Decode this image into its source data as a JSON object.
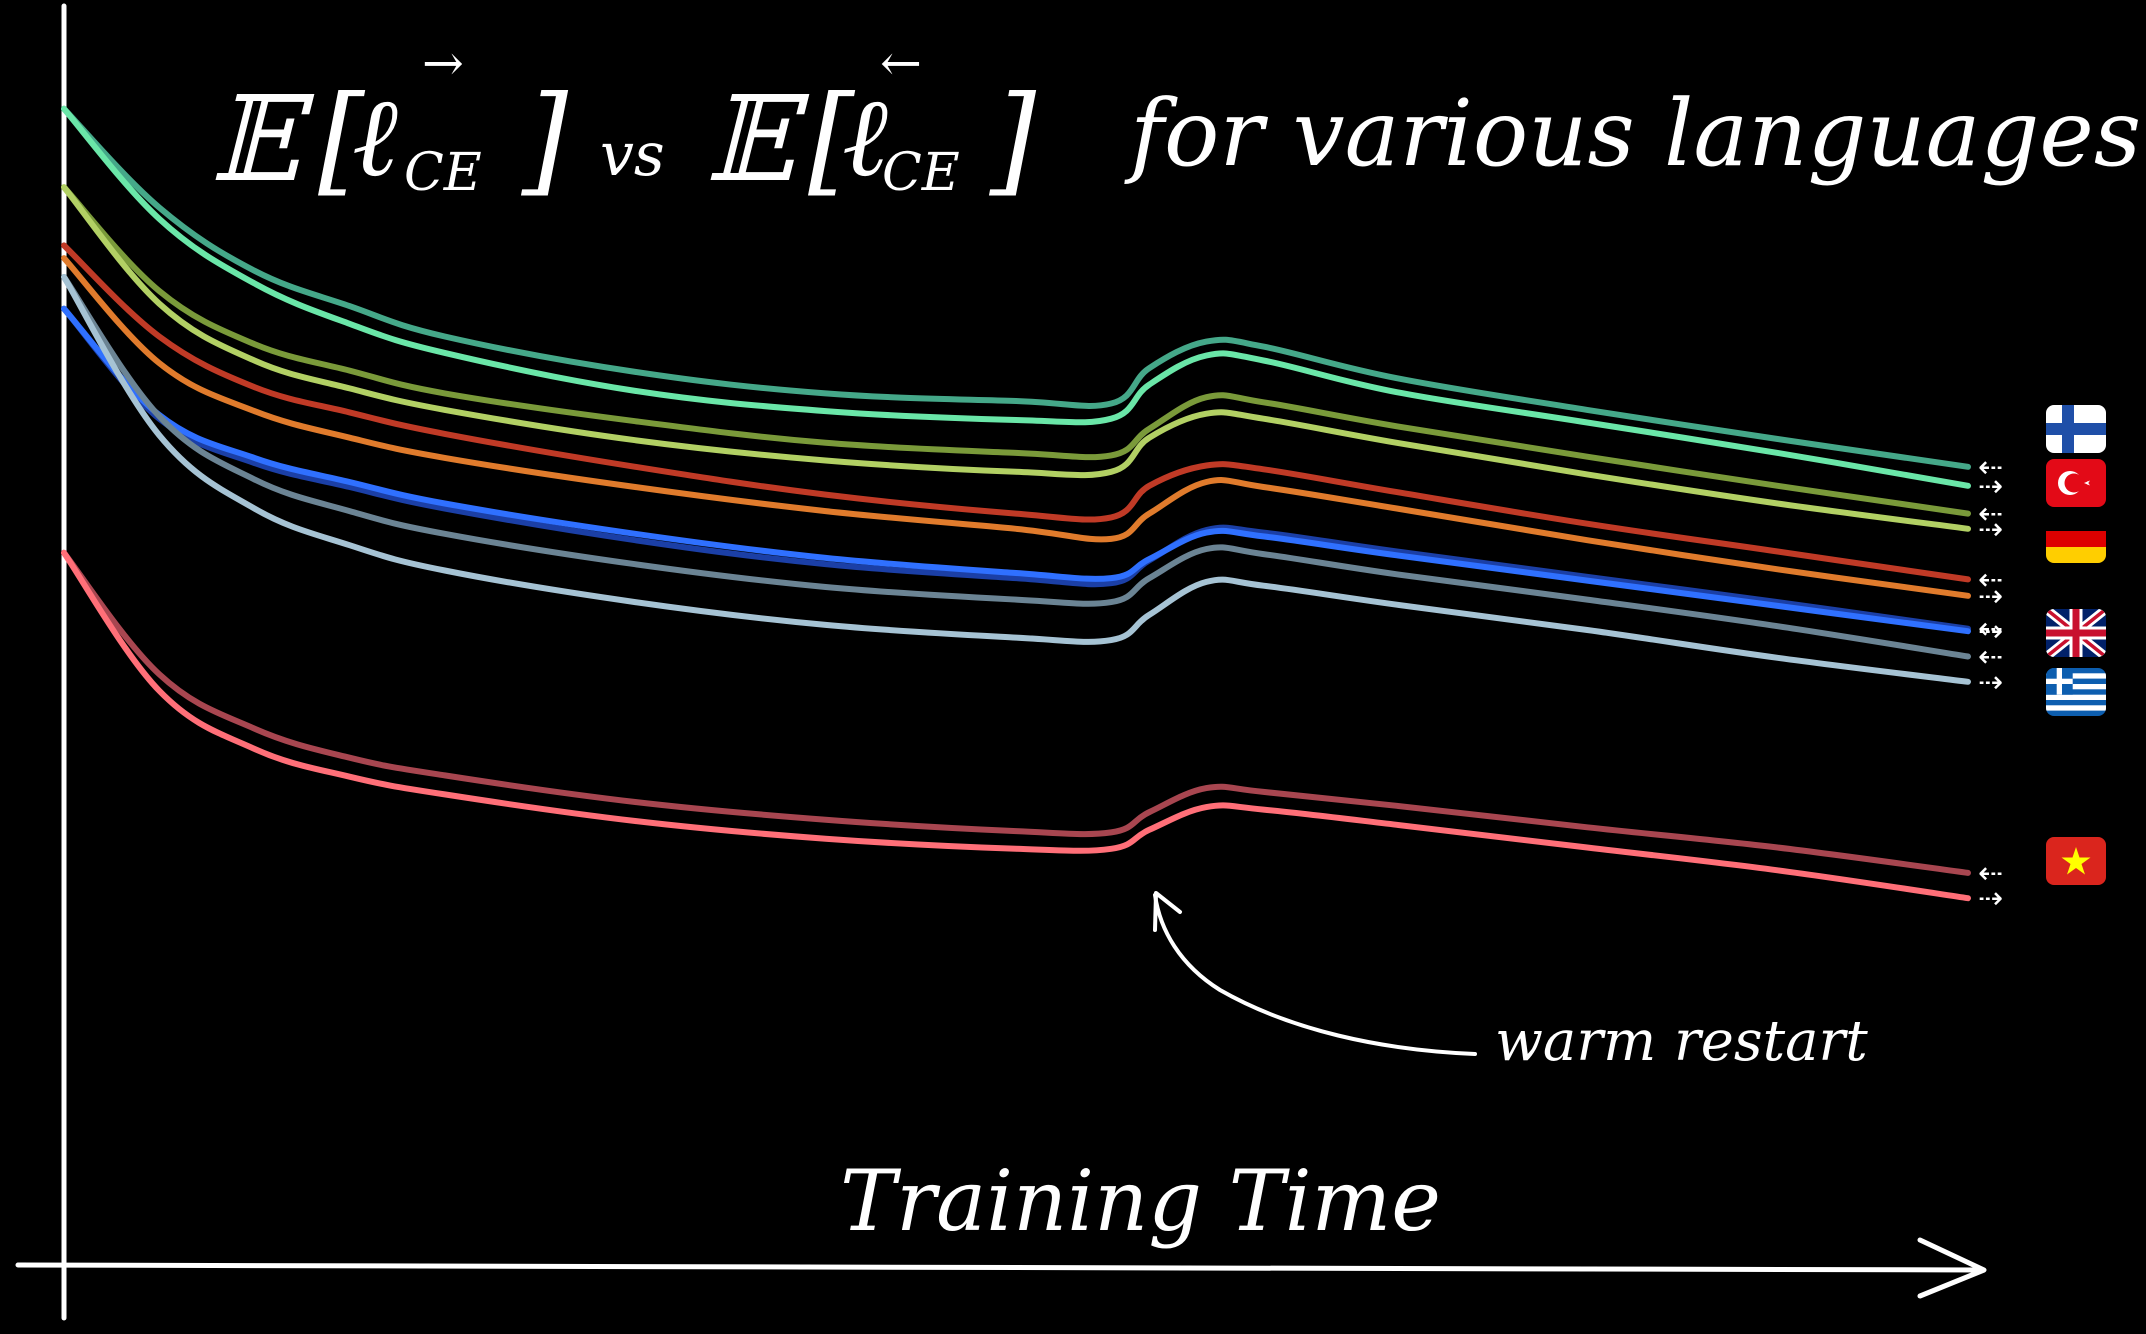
{
  "chart_data": {
    "type": "line",
    "title": "E[ℓ→CE] vs E[ℓ←CE] for various languages",
    "title_parts": {
      "e_symbol": "𝔼",
      "forward": "ℓ",
      "forward_arrow": "→",
      "sub": "CE",
      "vs": "vs",
      "backward_arrow": "←",
      "suffix": "for various languages"
    },
    "xlabel": "Training Time",
    "ylabel": "",
    "grid": false,
    "x": [
      0,
      5,
      10,
      15,
      20,
      30,
      40,
      50,
      55,
      57,
      60,
      63,
      70,
      80,
      90,
      100
    ],
    "xlim": [
      0,
      100
    ],
    "ylim": [
      0,
      100
    ],
    "annotation": {
      "text": "warm restart",
      "x": 57
    },
    "series": [
      {
        "language": "fi",
        "direction": "←",
        "arrow": "⇠",
        "color": "#45a889",
        "values": [
          91.4,
          83.6,
          78.6,
          75.8,
          73.4,
          70.6,
          68.9,
          68.3,
          68.1,
          70.9,
          73.0,
          72.6,
          70.1,
          67.6,
          65.3,
          63.1
        ]
      },
      {
        "language": "fi",
        "direction": "→",
        "arrow": "⇢",
        "color": "#6ae6a8",
        "values": [
          91.4,
          82.7,
          77.6,
          74.4,
          72.1,
          69.1,
          67.5,
          66.8,
          66.9,
          69.6,
          71.9,
          71.5,
          69.0,
          66.6,
          64.2,
          61.6
        ]
      },
      {
        "language": "tr",
        "direction": "←",
        "arrow": "⇠",
        "color": "#7a9a3a",
        "values": [
          85.2,
          77.0,
          72.8,
          70.7,
          68.9,
          66.7,
          65.0,
          64.2,
          64.0,
          66.1,
          68.6,
          68.2,
          66.3,
          63.9,
          61.6,
          59.4
        ]
      },
      {
        "language": "tr",
        "direction": "→",
        "arrow": "⇢",
        "color": "#b2d064",
        "values": [
          85.2,
          76.0,
          71.5,
          69.3,
          67.6,
          65.2,
          63.6,
          62.7,
          62.7,
          65.4,
          67.3,
          66.9,
          65.0,
          62.5,
          60.2,
          58.2
        ]
      },
      {
        "language": "de",
        "direction": "←",
        "arrow": "⇠",
        "color": "#c03a26",
        "values": [
          80.6,
          73.4,
          69.4,
          67.4,
          65.7,
          63.1,
          60.9,
          59.4,
          59.1,
          61.6,
          63.2,
          62.9,
          61.1,
          58.6,
          56.4,
          54.2
        ]
      },
      {
        "language": "de",
        "direction": "→",
        "arrow": "⇢",
        "color": "#e07b2c",
        "values": [
          79.6,
          71.3,
          67.5,
          65.4,
          63.8,
          61.5,
          59.6,
          58.2,
          57.4,
          59.4,
          61.9,
          61.5,
          59.8,
          57.3,
          55.0,
          52.9
        ]
      },
      {
        "language": "en",
        "direction": "←",
        "arrow": "⇠",
        "color": "#1b3fa6",
        "values": [
          75.6,
          66.9,
          63.4,
          61.5,
          59.8,
          57.3,
          55.4,
          54.3,
          53.9,
          55.7,
          58.1,
          57.9,
          56.4,
          54.4,
          52.4,
          50.3
        ]
      },
      {
        "language": "en",
        "direction": "→",
        "arrow": "⇢",
        "color": "#2f70ff",
        "values": [
          75.6,
          67.2,
          63.8,
          61.9,
          60.2,
          57.8,
          55.9,
          54.7,
          54.3,
          55.8,
          57.9,
          57.6,
          56.1,
          54.1,
          52.1,
          50.1
        ]
      },
      {
        "language": "el",
        "direction": "←",
        "arrow": "⇠",
        "color": "#6b8494",
        "values": [
          78.1,
          67.1,
          62.1,
          59.6,
          57.8,
          55.4,
          53.6,
          52.6,
          52.4,
          54.3,
          56.6,
          56.2,
          54.6,
          52.6,
          50.5,
          48.1
        ]
      },
      {
        "language": "el",
        "direction": "→",
        "arrow": "⇢",
        "color": "#a6c3d4",
        "values": [
          78.1,
          65.6,
          59.8,
          56.9,
          54.9,
          52.4,
          50.6,
          49.6,
          49.4,
          51.4,
          54.0,
          53.7,
          52.2,
          50.2,
          48.0,
          46.1
        ]
      },
      {
        "language": "vi",
        "direction": "←",
        "arrow": "⇠",
        "color": "#a84650",
        "values": [
          56.3,
          46.7,
          42.4,
          40.1,
          38.7,
          36.6,
          35.2,
          34.3,
          34.2,
          35.8,
          37.7,
          37.4,
          36.3,
          34.6,
          33.0,
          31.0
        ]
      },
      {
        "language": "vi",
        "direction": "→",
        "arrow": "⇢",
        "color": "#ff6f78",
        "values": [
          56.3,
          45.4,
          40.8,
          38.6,
          37.2,
          35.1,
          33.7,
          32.9,
          32.9,
          34.4,
          36.2,
          36.0,
          34.8,
          33.0,
          31.2,
          29.0
        ]
      }
    ],
    "flags": [
      {
        "language": "fi",
        "icon": "flag-finland-icon",
        "colors": [
          "#ffffff",
          "#1f4fa8"
        ]
      },
      {
        "language": "tr",
        "icon": "flag-turkey-icon",
        "colors": [
          "#e30a17",
          "#ffffff"
        ]
      },
      {
        "language": "de",
        "icon": "flag-germany-icon",
        "colors": [
          "#000000",
          "#dd0000",
          "#ffce00"
        ]
      },
      {
        "language": "en",
        "icon": "flag-uk-icon",
        "colors": [
          "#012169",
          "#ffffff",
          "#c8102e"
        ]
      },
      {
        "language": "el",
        "icon": "flag-greece-icon",
        "colors": [
          "#0d5eaf",
          "#ffffff"
        ]
      },
      {
        "language": "vi",
        "icon": "flag-vietnam-icon",
        "colors": [
          "#da251d",
          "#ffff00"
        ]
      }
    ]
  }
}
